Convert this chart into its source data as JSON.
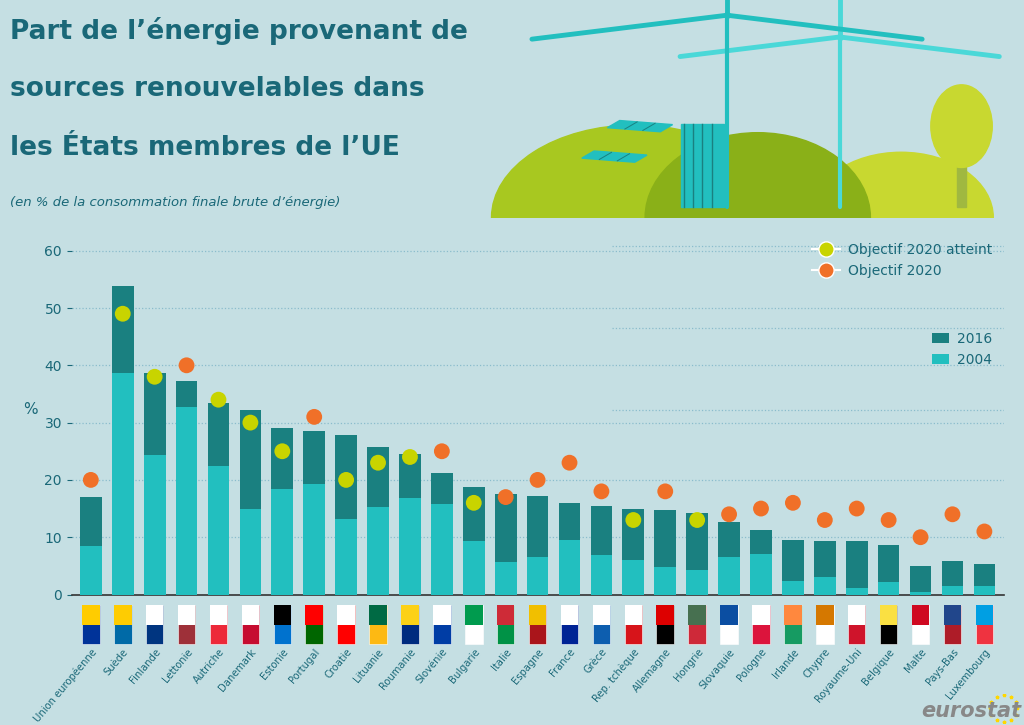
{
  "title_line1": "Part de l’énergie provenant de",
  "title_line2": "sources renouvelables dans",
  "title_line3": "les États membres de l’UE",
  "subtitle": "(en % de la consommation finale brute d’énergie)",
  "ylabel": "%",
  "background_color": "#c5dfe3",
  "plot_bg_color": "#c5dfe3",
  "bar_color_2016": "#1a8080",
  "bar_color_2004": "#22bfbf",
  "dot_achieved": "#c8d400",
  "dot_target": "#f07028",
  "separator_color": "#9abfc8",
  "legend_text_color": "#1a6878",
  "title_color": "#1a6878",
  "tick_color": "#1a6878",
  "categories": [
    "Union européenne",
    "Suède",
    "Finlande",
    "Lettonie",
    "Autriche",
    "Danemark",
    "Estonie",
    "Portugal",
    "Croatie",
    "Lituanie",
    "Roumanie",
    "Slovénie",
    "Bulgarie",
    "Italie",
    "Espagne",
    "France",
    "Grèce",
    "Rep. tchèque",
    "Allemagne",
    "Hongrie",
    "Slovaquie",
    "Pologne",
    "Irlande",
    "Chypre",
    "Royaume-Uni",
    "Belgique",
    "Malte",
    "Pays-Bas",
    "Luxembourg"
  ],
  "values_2016": [
    17.0,
    53.8,
    38.7,
    37.2,
    33.5,
    32.2,
    29.0,
    28.5,
    27.9,
    25.8,
    24.5,
    21.2,
    18.7,
    17.5,
    17.2,
    16.0,
    15.5,
    14.9,
    14.8,
    14.3,
    12.7,
    11.3,
    9.5,
    9.3,
    9.3,
    8.7,
    5.0,
    5.9,
    5.4
  ],
  "values_2004": [
    8.5,
    38.7,
    24.3,
    32.8,
    22.5,
    14.9,
    18.4,
    19.2,
    13.2,
    15.2,
    16.8,
    15.8,
    9.4,
    5.7,
    6.5,
    9.5,
    6.9,
    6.1,
    4.8,
    4.2,
    6.5,
    7.0,
    2.3,
    3.1,
    1.1,
    2.2,
    0.5,
    1.4,
    1.4
  ],
  "target_2020": [
    20.0,
    49.0,
    38.0,
    40.0,
    34.0,
    30.0,
    25.0,
    31.0,
    20.0,
    23.0,
    24.0,
    25.0,
    16.0,
    17.0,
    20.0,
    23.0,
    18.0,
    13.0,
    18.0,
    13.0,
    14.0,
    15.0,
    16.0,
    13.0,
    15.0,
    13.0,
    10.0,
    14.0,
    11.0
  ],
  "target_achieved": [
    false,
    true,
    true,
    false,
    true,
    true,
    true,
    false,
    true,
    true,
    true,
    false,
    true,
    false,
    false,
    false,
    false,
    true,
    false,
    true,
    false,
    false,
    false,
    false,
    false,
    false,
    false,
    false,
    false
  ],
  "ylim": [
    0,
    62
  ],
  "yticks": [
    0,
    10,
    20,
    30,
    40,
    50,
    60
  ],
  "illustration_bg": "#c5dfe3",
  "hill_color1": "#a8c820",
  "hill_color2": "#8ab018",
  "hill_color3": "#c8d830",
  "turbine_color": "#22bfbf",
  "solar_color": "#22bfbf",
  "dam_color": "#22bfbf",
  "tree_color": "#c8d830"
}
